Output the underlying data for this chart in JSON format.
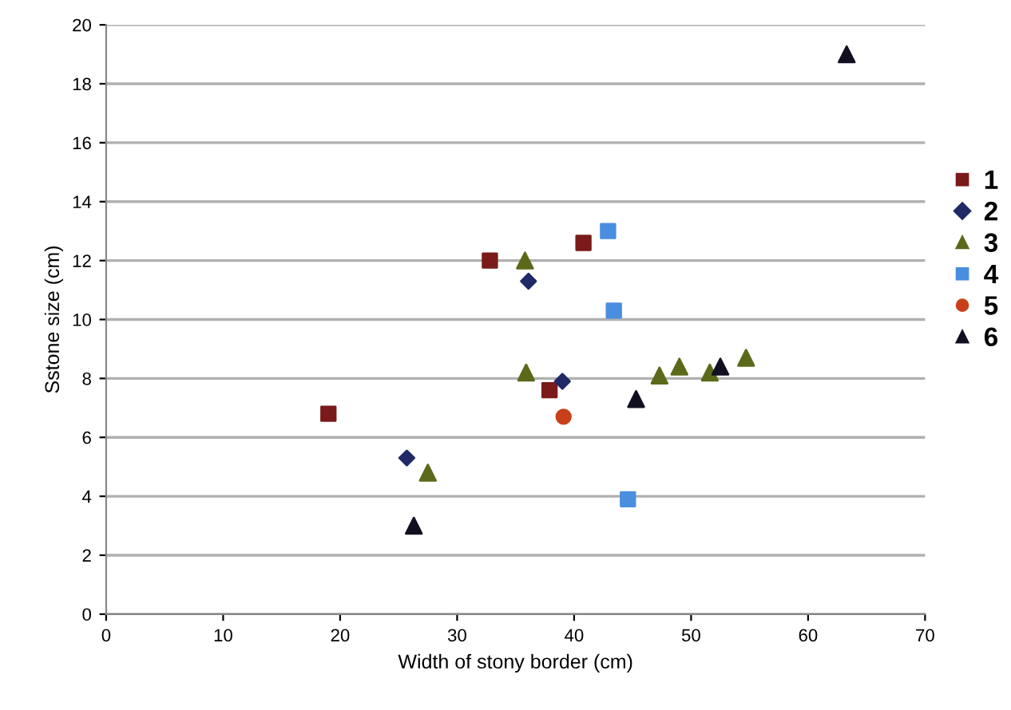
{
  "chart_data": {
    "type": "scatter",
    "xlabel": "Width of stony border (cm)",
    "ylabel": "Sstone size (cm)",
    "xlim": [
      0,
      70
    ],
    "xticks": [
      0,
      10,
      20,
      30,
      40,
      50,
      60,
      70
    ],
    "ylim": [
      0,
      20
    ],
    "yticks": [
      0,
      2,
      4,
      6,
      8,
      10,
      12,
      14,
      16,
      18,
      20
    ],
    "grid": "y",
    "legend": "right",
    "series": [
      {
        "name": "1",
        "color": "#7a1a1a",
        "marker": "square",
        "x": [
          19.0,
          32.8,
          40.8,
          37.9
        ],
        "values": [
          6.8,
          12.0,
          12.6,
          7.6
        ]
      },
      {
        "name": "2",
        "color": "#1f2a66",
        "marker": "diamond",
        "x": [
          25.7,
          36.1,
          39.0
        ],
        "values": [
          5.3,
          11.3,
          7.9
        ]
      },
      {
        "name": "3",
        "color": "#5a6a1a",
        "marker": "triangle",
        "x": [
          27.5,
          35.8,
          35.9,
          47.3,
          49.0,
          51.6,
          54.7
        ],
        "values": [
          4.8,
          12.0,
          8.2,
          8.1,
          8.4,
          8.2,
          8.7
        ]
      },
      {
        "name": "4",
        "color": "#4a8ee0",
        "marker": "square",
        "x": [
          42.9,
          43.4,
          44.6
        ],
        "values": [
          13.0,
          10.3,
          3.9
        ]
      },
      {
        "name": "5",
        "color": "#c8401a",
        "marker": "circle",
        "x": [
          39.1
        ],
        "values": [
          6.7
        ]
      },
      {
        "name": "6",
        "color": "#101020",
        "marker": "triangle",
        "x": [
          26.3,
          45.3,
          52.5,
          63.3
        ],
        "values": [
          3.0,
          7.3,
          8.4,
          19.0
        ]
      }
    ]
  }
}
